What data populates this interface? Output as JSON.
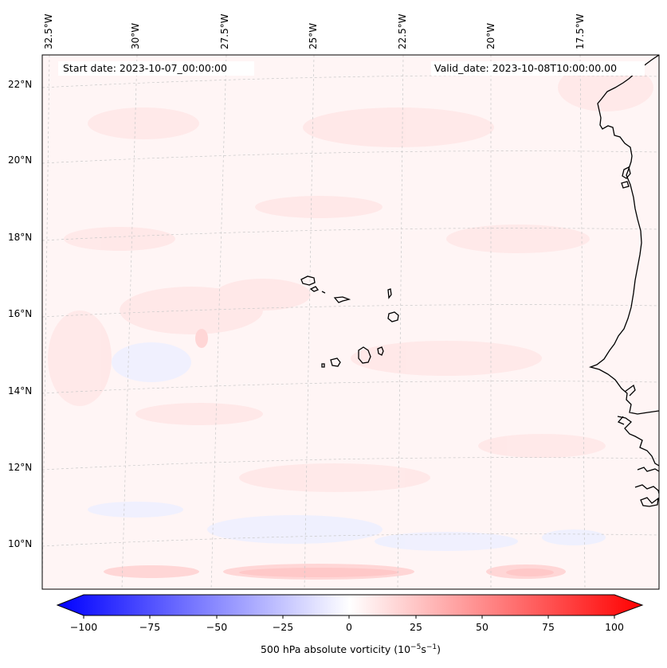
{
  "map": {
    "annotations": {
      "start_date": "Start date: 2023-10-07_00:00:00",
      "valid_date": "Valid_date: 2023-10-08T10:00:00.00"
    },
    "longitude_labels": [
      "32.5°W",
      "30°W",
      "27.5°W",
      "25°W",
      "22.5°W",
      "20°W",
      "17.5°W"
    ],
    "latitude_labels": [
      "22°N",
      "20°N",
      "18°N",
      "16°N",
      "14°N",
      "12°N",
      "10°N"
    ],
    "field": "500 hPa absolute vorticity",
    "region": "Eastern tropical Atlantic, Cape Verde islands and West African coast"
  },
  "colorbar": {
    "label": "500 hPa absolute vorticity (10",
    "label_exp1": "−5",
    "label_mid": "s",
    "label_exp2": "−1",
    "label_end": ")",
    "ticks": [
      "−100",
      "−75",
      "−50",
      "−25",
      "0",
      "25",
      "50",
      "75",
      "100"
    ],
    "range": [
      -100,
      100
    ],
    "min_color": "#0000ff",
    "mid_color": "#ffffff",
    "max_color": "#ff0000"
  }
}
